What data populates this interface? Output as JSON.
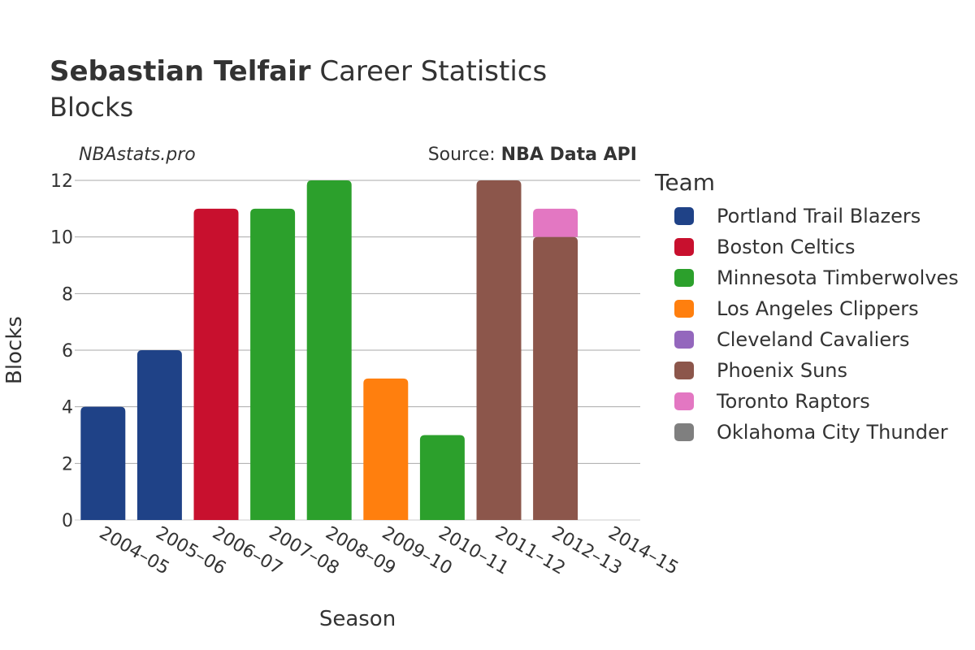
{
  "header": {
    "title_bold": "Sebastian Telfair",
    "title_rest": " Career Statistics",
    "subtitle": "Blocks",
    "credit": "NBAstats.pro",
    "source_prefix": "Source: ",
    "source_bold": "NBA Data API"
  },
  "legend": {
    "title": "Team",
    "items": [
      {
        "label": "Portland Trail Blazers",
        "color": "#1f4287"
      },
      {
        "label": "Boston Celtics",
        "color": "#c8102e"
      },
      {
        "label": "Minnesota Timberwolves",
        "color": "#2ca02c"
      },
      {
        "label": "Los Angeles Clippers",
        "color": "#ff7f0e"
      },
      {
        "label": "Cleveland Cavaliers",
        "color": "#9467bd"
      },
      {
        "label": "Phoenix Suns",
        "color": "#8c564b"
      },
      {
        "label": "Toronto Raptors",
        "color": "#e377c2"
      },
      {
        "label": "Oklahoma City Thunder",
        "color": "#7f7f7f"
      }
    ]
  },
  "chart_data": {
    "type": "bar",
    "stacked": true,
    "xlabel": "Season",
    "ylabel": "Blocks",
    "ylim": [
      0,
      12
    ],
    "yticks": [
      0,
      2,
      4,
      6,
      8,
      10,
      12
    ],
    "grid": true,
    "legend_position": "right",
    "categories": [
      "2004–05",
      "2005–06",
      "2006–07",
      "2007–08",
      "2008–09",
      "2009–10",
      "2010–11",
      "2011–12",
      "2012–13",
      "2014–15"
    ],
    "series": [
      {
        "name": "Portland Trail Blazers",
        "color": "#1f4287",
        "values": [
          4,
          6,
          0,
          0,
          0,
          0,
          0,
          0,
          0,
          0
        ]
      },
      {
        "name": "Boston Celtics",
        "color": "#c8102e",
        "values": [
          0,
          0,
          11,
          0,
          0,
          0,
          0,
          0,
          0,
          0
        ]
      },
      {
        "name": "Minnesota Timberwolves",
        "color": "#2ca02c",
        "values": [
          0,
          0,
          0,
          11,
          12,
          0,
          3,
          0,
          0,
          0
        ]
      },
      {
        "name": "Los Angeles Clippers",
        "color": "#ff7f0e",
        "values": [
          0,
          0,
          0,
          0,
          0,
          5,
          0,
          0,
          0,
          0
        ]
      },
      {
        "name": "Cleveland Cavaliers",
        "color": "#9467bd",
        "values": [
          0,
          0,
          0,
          0,
          0,
          0,
          0,
          0,
          0,
          0
        ]
      },
      {
        "name": "Phoenix Suns",
        "color": "#8c564b",
        "values": [
          0,
          0,
          0,
          0,
          0,
          0,
          0,
          12,
          10,
          0
        ]
      },
      {
        "name": "Toronto Raptors",
        "color": "#e377c2",
        "values": [
          0,
          0,
          0,
          0,
          0,
          0,
          0,
          0,
          1,
          0
        ]
      },
      {
        "name": "Oklahoma City Thunder",
        "color": "#7f7f7f",
        "values": [
          0,
          0,
          0,
          0,
          0,
          0,
          0,
          0,
          0,
          0
        ]
      }
    ]
  }
}
